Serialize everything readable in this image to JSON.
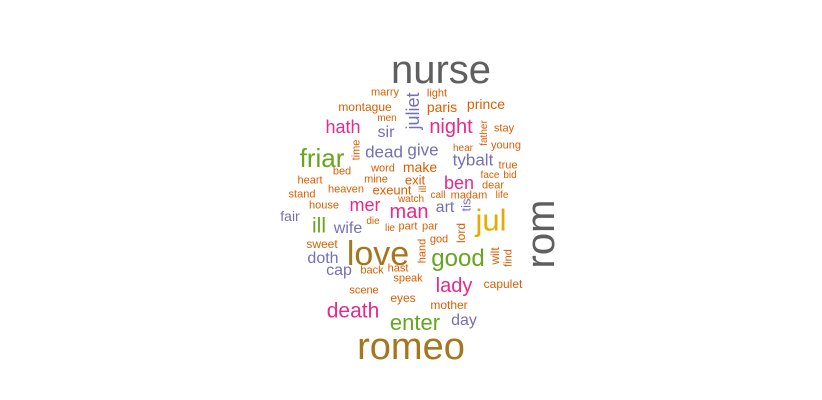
{
  "palette": {
    "gray": "#5f5f5f",
    "brown": "#a6761d",
    "gold": "#e6ab02",
    "pink": "#e7298a",
    "green": "#66a61e",
    "purple": "#7570b3",
    "orange": "#d95f02"
  },
  "words": [
    {
      "text": "nurse",
      "color": "gray"
    },
    {
      "text": "romeo",
      "color": "brown"
    },
    {
      "text": "rom",
      "color": "gray"
    },
    {
      "text": "love",
      "color": "brown"
    },
    {
      "text": "jul",
      "color": "gold"
    },
    {
      "text": "good",
      "color": "green"
    },
    {
      "text": "friar",
      "color": "green"
    },
    {
      "text": "enter",
      "color": "green"
    },
    {
      "text": "death",
      "color": "pink"
    },
    {
      "text": "lady",
      "color": "pink"
    },
    {
      "text": "night",
      "color": "pink"
    },
    {
      "text": "man",
      "color": "pink"
    },
    {
      "text": "ben",
      "color": "pink"
    },
    {
      "text": "mer",
      "color": "pink"
    },
    {
      "text": "ill",
      "color": "green"
    },
    {
      "text": "hath",
      "color": "pink"
    },
    {
      "text": "juliet",
      "color": "purple"
    },
    {
      "text": "dead",
      "color": "purple"
    },
    {
      "text": "give",
      "color": "purple"
    },
    {
      "text": "tybalt",
      "color": "purple"
    },
    {
      "text": "wife",
      "color": "purple"
    },
    {
      "text": "art",
      "color": "purple"
    },
    {
      "text": "sir",
      "color": "purple"
    },
    {
      "text": "doth",
      "color": "purple"
    },
    {
      "text": "cap",
      "color": "purple"
    },
    {
      "text": "day",
      "color": "purple"
    },
    {
      "text": "fair",
      "color": "purple"
    },
    {
      "text": "tis",
      "color": "purple"
    },
    {
      "text": "make",
      "color": "orange"
    },
    {
      "text": "exit",
      "color": "orange"
    },
    {
      "text": "exeunt",
      "color": "orange"
    },
    {
      "text": "paris",
      "color": "orange"
    },
    {
      "text": "prince",
      "color": "orange"
    },
    {
      "text": "montague",
      "color": "orange"
    },
    {
      "text": "marry",
      "color": "orange"
    },
    {
      "text": "light",
      "color": "orange"
    },
    {
      "text": "men",
      "color": "orange"
    },
    {
      "text": "stay",
      "color": "orange"
    },
    {
      "text": "father",
      "color": "orange"
    },
    {
      "text": "young",
      "color": "orange"
    },
    {
      "text": "hear",
      "color": "orange"
    },
    {
      "text": "true",
      "color": "orange"
    },
    {
      "text": "time",
      "color": "orange"
    },
    {
      "text": "bed",
      "color": "orange"
    },
    {
      "text": "word",
      "color": "orange"
    },
    {
      "text": "mine",
      "color": "orange"
    },
    {
      "text": "heart",
      "color": "orange"
    },
    {
      "text": "heaven",
      "color": "orange"
    },
    {
      "text": "stand",
      "color": "orange"
    },
    {
      "text": "face",
      "color": "orange"
    },
    {
      "text": "bid",
      "color": "orange"
    },
    {
      "text": "dear",
      "color": "orange"
    },
    {
      "text": "life",
      "color": "orange"
    },
    {
      "text": "call",
      "color": "orange"
    },
    {
      "text": "madam",
      "color": "orange"
    },
    {
      "text": "house",
      "color": "orange"
    },
    {
      "text": "watch",
      "color": "orange"
    },
    {
      "text": "die",
      "color": "orange"
    },
    {
      "text": "lie",
      "color": "orange"
    },
    {
      "text": "part",
      "color": "orange"
    },
    {
      "text": "par",
      "color": "orange"
    },
    {
      "text": "god",
      "color": "orange"
    },
    {
      "text": "lord",
      "color": "orange"
    },
    {
      "text": "sweet",
      "color": "orange"
    },
    {
      "text": "hand",
      "color": "orange"
    },
    {
      "text": "back",
      "color": "orange"
    },
    {
      "text": "hast",
      "color": "orange"
    },
    {
      "text": "speak",
      "color": "orange"
    },
    {
      "text": "wilt",
      "color": "orange"
    },
    {
      "text": "find",
      "color": "orange"
    },
    {
      "text": "capulet",
      "color": "orange"
    },
    {
      "text": "scene",
      "color": "orange"
    },
    {
      "text": "eyes",
      "color": "orange"
    },
    {
      "text": "mother",
      "color": "orange"
    },
    {
      "text": "ill",
      "color": "orange"
    }
  ]
}
